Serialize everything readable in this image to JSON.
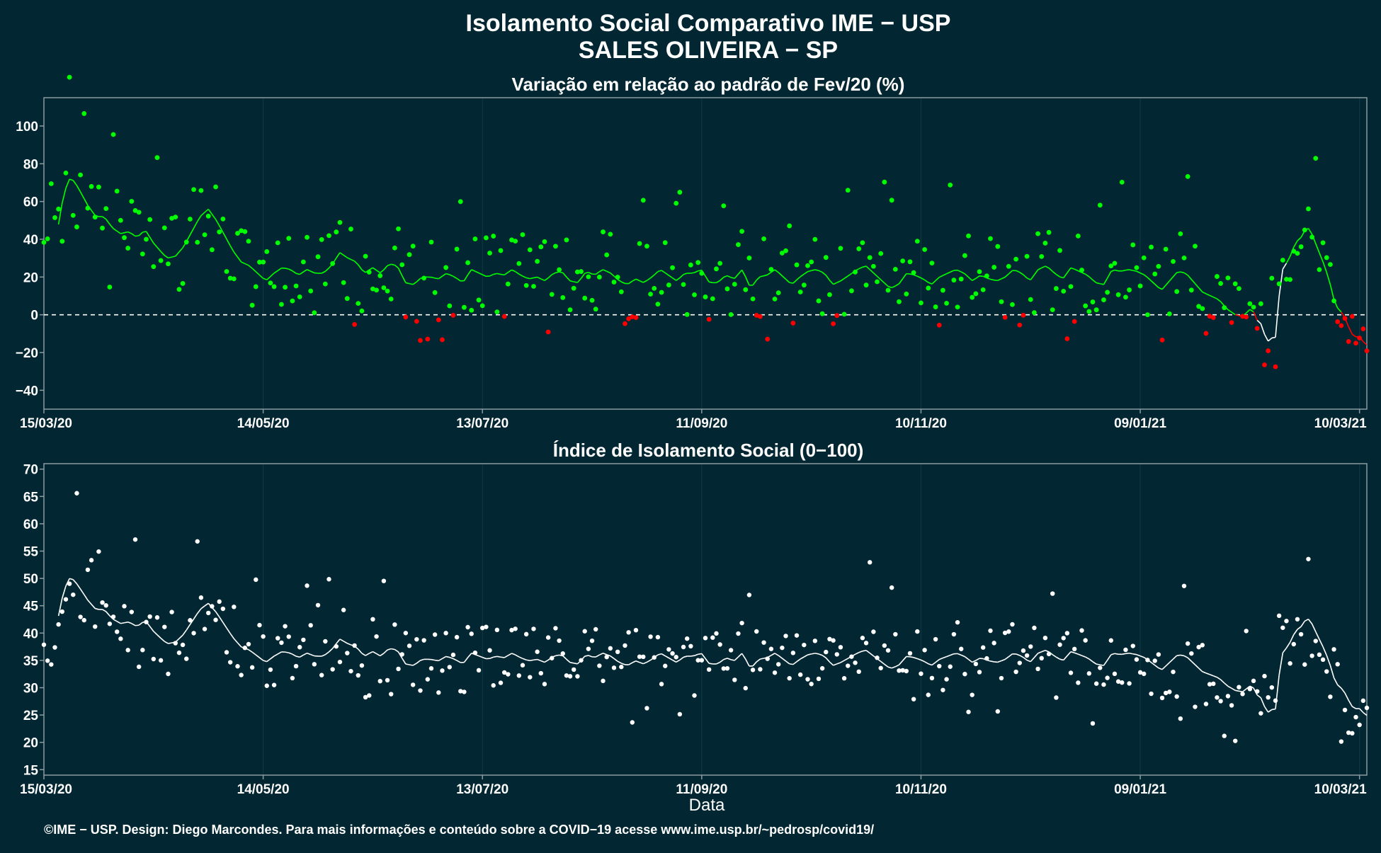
{
  "title_line1": "Isolamento Social Comparativo IME − USP",
  "title_line2": "SALES OLIVEIRA − SP",
  "xlabel": "Data",
  "credit": "©IME − USP. Design: Diego Marcondes. Para mais informações e conteúdo sobre a COVID−19 acesse www.ime.usp.br/~pedrosp/covid19/",
  "colors": {
    "background": "#022732",
    "panel_border": "#8a9ba0",
    "grid": "#0f3a45",
    "positive": "#00ff00",
    "negative": "#ff0000",
    "index": "#ffffff"
  },
  "chart_data": [
    {
      "type": "scatter",
      "title": "Variação em relação ao padrão de Fev/20 (%)",
      "x_start": "15/03/20",
      "x_end": "12/03/21",
      "x_ticks": [
        "15/03/20",
        "14/05/20",
        "13/07/20",
        "11/09/20",
        "10/11/20",
        "09/01/21",
        "10/03/21"
      ],
      "y_ticks": [
        100,
        80,
        60,
        40,
        20,
        0,
        -20,
        -40
      ],
      "ylim": [
        -50,
        115
      ],
      "reference_line": 0,
      "trend_anchors": [
        [
          0,
          20
        ],
        [
          3,
          22
        ],
        [
          6,
          30
        ],
        [
          10,
          45
        ],
        [
          14,
          62
        ],
        [
          18,
          72
        ],
        [
          22,
          71
        ],
        [
          26,
          66
        ],
        [
          32,
          58
        ],
        [
          38,
          52
        ],
        [
          44,
          52
        ],
        [
          50,
          46
        ],
        [
          56,
          43
        ],
        [
          62,
          44
        ],
        [
          68,
          41
        ],
        [
          74,
          45
        ],
        [
          80,
          38
        ],
        [
          86,
          33
        ],
        [
          90,
          30
        ],
        [
          96,
          31
        ],
        [
          102,
          36
        ],
        [
          108,
          44
        ],
        [
          114,
          52
        ],
        [
          120,
          56
        ],
        [
          126,
          50
        ],
        [
          132,
          42
        ],
        [
          138,
          34
        ],
        [
          144,
          28
        ],
        [
          150,
          26
        ],
        [
          156,
          22
        ],
        [
          162,
          18
        ],
        [
          168,
          22
        ],
        [
          174,
          25
        ],
        [
          180,
          24
        ],
        [
          186,
          21
        ],
        [
          192,
          24
        ],
        [
          198,
          22
        ],
        [
          204,
          22
        ],
        [
          210,
          26
        ],
        [
          216,
          33
        ],
        [
          222,
          30
        ],
        [
          228,
          28
        ],
        [
          234,
          22
        ],
        [
          240,
          25
        ],
        [
          246,
          22
        ],
        [
          252,
          27
        ],
        [
          258,
          26
        ],
        [
          264,
          17
        ],
        [
          270,
          16
        ],
        [
          276,
          20
        ],
        [
          282,
          20
        ],
        [
          288,
          19
        ],
        [
          294,
          22
        ],
        [
          300,
          20
        ],
        [
          306,
          17
        ],
        [
          312,
          24
        ],
        [
          318,
          22
        ],
        [
          324,
          20
        ],
        [
          330,
          22
        ],
        [
          336,
          21
        ],
        [
          342,
          24
        ],
        [
          348,
          21
        ],
        [
          354,
          19
        ],
        [
          360,
          20
        ],
        [
          366,
          18
        ],
        [
          372,
          22
        ],
        [
          378,
          23
        ],
        [
          384,
          18
        ],
        [
          390,
          17
        ],
        [
          396,
          23
        ],
        [
          402,
          21
        ],
        [
          408,
          24
        ],
        [
          414,
          22
        ],
        [
          420,
          18
        ],
        [
          426,
          16
        ],
        [
          432,
          19
        ],
        [
          438,
          17
        ],
        [
          444,
          20
        ],
        [
          450,
          24
        ],
        [
          456,
          21
        ],
        [
          462,
          18
        ],
        [
          468,
          22
        ],
        [
          474,
          22
        ],
        [
          480,
          24
        ],
        [
          486,
          17
        ],
        [
          492,
          17
        ],
        [
          498,
          21
        ],
        [
          504,
          19
        ],
        [
          510,
          24
        ],
        [
          516,
          14
        ],
        [
          522,
          20
        ],
        [
          528,
          21
        ],
        [
          534,
          24
        ],
        [
          540,
          20
        ],
        [
          546,
          16
        ],
        [
          552,
          20
        ],
        [
          558,
          23
        ],
        [
          564,
          24
        ],
        [
          570,
          22
        ],
        [
          576,
          16
        ],
        [
          582,
          18
        ],
        [
          588,
          21
        ],
        [
          594,
          24
        ],
        [
          600,
          26
        ],
        [
          606,
          22
        ],
        [
          612,
          18
        ],
        [
          618,
          14
        ],
        [
          624,
          16
        ],
        [
          630,
          22
        ],
        [
          636,
          21
        ],
        [
          642,
          19
        ],
        [
          648,
          16
        ],
        [
          654,
          20
        ],
        [
          660,
          22
        ],
        [
          666,
          24
        ],
        [
          672,
          22
        ],
        [
          678,
          18
        ],
        [
          684,
          21
        ],
        [
          690,
          19
        ],
        [
          696,
          18
        ],
        [
          702,
          20
        ],
        [
          708,
          24
        ],
        [
          714,
          22
        ],
        [
          720,
          18
        ],
        [
          726,
          24
        ],
        [
          732,
          26
        ],
        [
          738,
          22
        ],
        [
          744,
          19
        ],
        [
          750,
          25
        ],
        [
          756,
          23
        ],
        [
          762,
          21
        ],
        [
          768,
          17
        ],
        [
          774,
          16
        ],
        [
          780,
          24
        ],
        [
          786,
          23
        ],
        [
          792,
          24
        ],
        [
          798,
          23
        ],
        [
          804,
          21
        ],
        [
          810,
          17
        ],
        [
          816,
          13
        ],
        [
          822,
          18
        ],
        [
          828,
          23
        ],
        [
          834,
          22
        ],
        [
          840,
          17
        ],
        [
          846,
          12
        ],
        [
          852,
          10
        ],
        [
          858,
          8
        ],
        [
          864,
          3
        ],
        [
          870,
          0
        ],
        [
          876,
          -1
        ],
        [
          880,
          3
        ],
        [
          883,
          2
        ],
        [
          886,
          -3
        ],
        [
          889,
          -5
        ],
        [
          892,
          -12
        ],
        [
          895,
          -15
        ],
        [
          898,
          -10
        ],
        [
          900,
          -13
        ],
        [
          903,
          22
        ],
        [
          906,
          26
        ],
        [
          909,
          29
        ],
        [
          912,
          35
        ],
        [
          915,
          39
        ],
        [
          918,
          41
        ],
        [
          921,
          45
        ],
        [
          924,
          46
        ],
        [
          927,
          41
        ],
        [
          930,
          35
        ],
        [
          933,
          30
        ],
        [
          936,
          24
        ],
        [
          939,
          17
        ],
        [
          942,
          8
        ],
        [
          945,
          3
        ],
        [
          948,
          1
        ],
        [
          951,
          -3
        ],
        [
          954,
          -9
        ],
        [
          957,
          -12
        ],
        [
          960,
          -11
        ],
        [
          963,
          -14
        ],
        [
          966,
          -16
        ]
      ],
      "note": "trend_anchors hold (day index, %) pairs; days counted from 15/03/20"
    },
    {
      "type": "scatter",
      "title": "Índice de Isolamento Social (0−100)",
      "x_start": "15/03/20",
      "x_end": "12/03/21",
      "x_ticks": [
        "15/03/20",
        "14/05/20",
        "13/07/20",
        "11/09/20",
        "10/11/20",
        "09/01/21",
        "10/03/21"
      ],
      "y_ticks": [
        70,
        65,
        60,
        55,
        50,
        45,
        40,
        35,
        30,
        25,
        20,
        15
      ],
      "ylim": [
        14,
        71
      ]
    }
  ]
}
